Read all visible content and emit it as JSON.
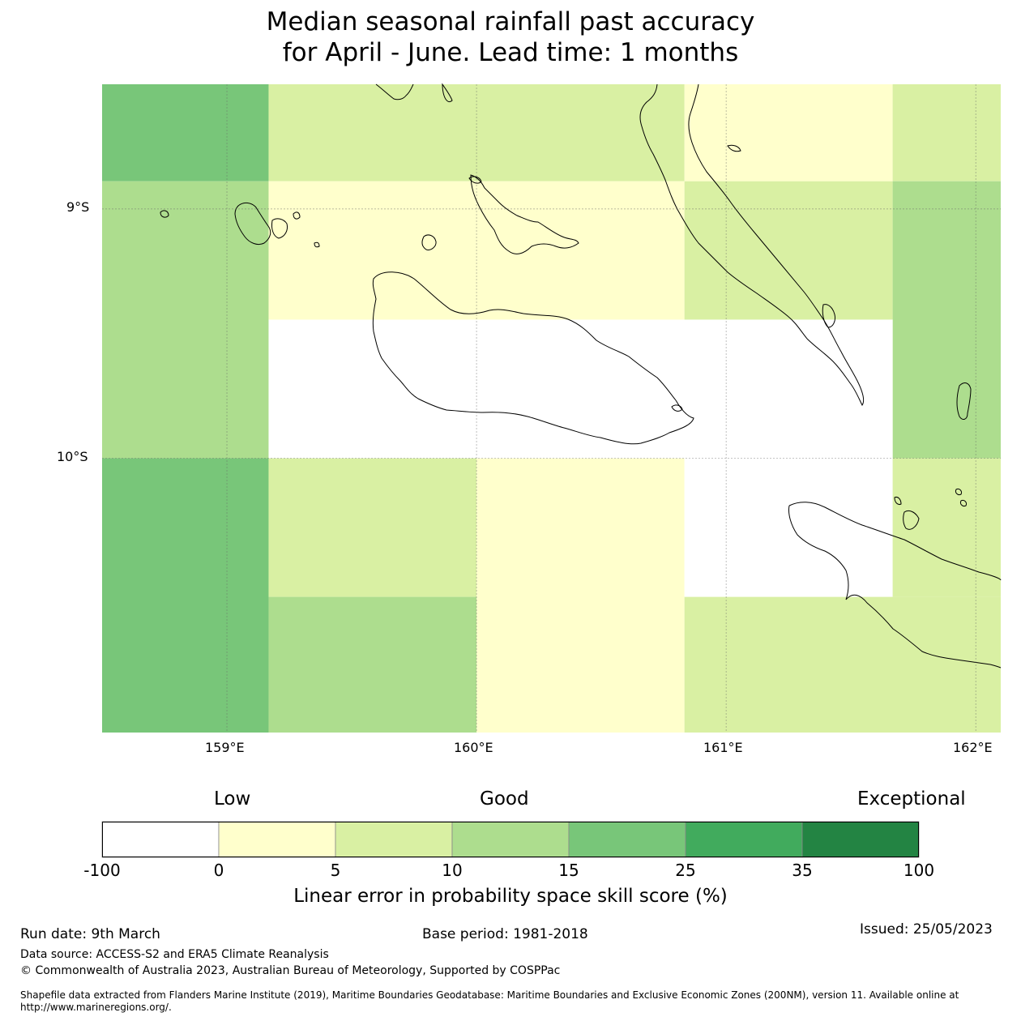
{
  "title": {
    "line1": "Median seasonal rainfall past accuracy",
    "line2": "for April - June. Lead time: 1 months"
  },
  "map": {
    "lat_labels": [
      "9°S",
      "10°S"
    ],
    "lon_labels": [
      "159°E",
      "160°E",
      "161°E",
      "162°E"
    ],
    "extent": {
      "lon_min": 158.5,
      "lon_max": 162.1,
      "lat_min": -11.1,
      "lat_max": -8.5
    },
    "grid_cells": [
      {
        "lon0": 158.5,
        "lon1": 159.167,
        "lat0": -8.5,
        "lat1": -8.889,
        "skill": 20
      },
      {
        "lon0": 159.167,
        "lon1": 160.833,
        "lat0": -8.5,
        "lat1": -8.889,
        "skill": 7
      },
      {
        "lon0": 160.833,
        "lon1": 161.667,
        "lat0": -8.5,
        "lat1": -8.889,
        "skill": 2
      },
      {
        "lon0": 161.667,
        "lon1": 162.1,
        "lat0": -8.5,
        "lat1": -8.889,
        "skill": 7
      },
      {
        "lon0": 158.5,
        "lon1": 159.167,
        "lat0": -8.889,
        "lat1": -10.0,
        "skill": 12
      },
      {
        "lon0": 159.167,
        "lon1": 160.833,
        "lat0": -8.889,
        "lat1": -9.444,
        "skill": 2
      },
      {
        "lon0": 160.833,
        "lon1": 161.667,
        "lat0": -8.889,
        "lat1": -9.444,
        "skill": 7
      },
      {
        "lon0": 161.667,
        "lon1": 162.1,
        "lat0": -8.889,
        "lat1": -10.0,
        "skill": 12
      },
      {
        "lon0": 159.167,
        "lon1": 161.667,
        "lat0": -9.444,
        "lat1": -10.0,
        "skill": -10
      },
      {
        "lon0": 158.5,
        "lon1": 159.167,
        "lat0": -10.0,
        "lat1": -11.1,
        "skill": 20
      },
      {
        "lon0": 159.167,
        "lon1": 160.0,
        "lat0": -10.0,
        "lat1": -10.556,
        "skill": 7
      },
      {
        "lon0": 160.0,
        "lon1": 160.833,
        "lat0": -10.0,
        "lat1": -11.1,
        "skill": 2
      },
      {
        "lon0": 160.833,
        "lon1": 161.667,
        "lat0": -10.0,
        "lat1": -10.556,
        "skill": -10
      },
      {
        "lon0": 161.667,
        "lon1": 162.1,
        "lat0": -10.0,
        "lat1": -10.556,
        "skill": 7
      },
      {
        "lon0": 159.167,
        "lon1": 160.0,
        "lat0": -10.556,
        "lat1": -11.1,
        "skill": 12
      },
      {
        "lon0": 160.833,
        "lon1": 162.1,
        "lat0": -10.556,
        "lat1": -11.1,
        "skill": 7
      }
    ]
  },
  "colorbar": {
    "category_labels": [
      "Low",
      "Good",
      "Exceptional"
    ],
    "ticks": [
      "-100",
      "0",
      "5",
      "10",
      "15",
      "25",
      "35",
      "100"
    ],
    "colors": [
      "#ffffff",
      "#ffffcc",
      "#d9f0a3",
      "#addd8e",
      "#78c679",
      "#41ab5d",
      "#238443"
    ],
    "label": "Linear error in probability space skill score (%)"
  },
  "footer": {
    "run_date": "Run date: 9th March",
    "base_period": "Base period: 1981-2018",
    "issued": "Issued: 25/05/2023",
    "data_source": "Data source: ACCESS-S2 and ERA5 Climate Reanalysis",
    "copyright": "© Commonwealth of Australia 2023, Australian Bureau of Meteorology, Supported by COSPPac",
    "shapefile_line1": "Shapefile data extracted from Flanders Marine Institute (2019), Maritime Boundaries Geodatabase: Maritime Boundaries and Exclusive Economic Zones (200NM), version 11. Available online at",
    "shapefile_line2": "http://www.marineregions.org/."
  }
}
